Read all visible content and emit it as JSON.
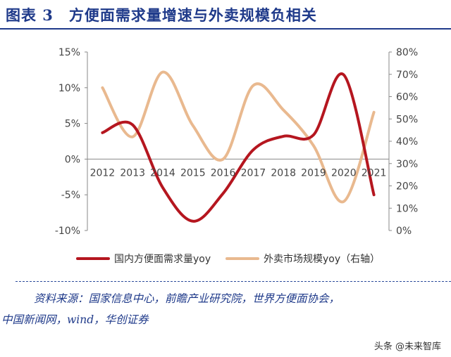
{
  "header": {
    "title": "图表 3　方便面需求量增速与外卖规模负相关"
  },
  "chart_data": {
    "type": "line",
    "categories": [
      "2012",
      "2013",
      "2014",
      "2015",
      "2016",
      "2017",
      "2018",
      "2019",
      "2020",
      "2021"
    ],
    "series": [
      {
        "name": "国内方便面需求量yoy",
        "axis": "left",
        "color": "#b5161f",
        "values": [
          3.7,
          4.8,
          -4.0,
          -8.7,
          -4.8,
          1.3,
          3.2,
          3.4,
          11.8,
          -5.0
        ]
      },
      {
        "name": "外卖市场规模yoy（右轴）",
        "axis": "right",
        "color": "#e9b98f",
        "values": [
          64,
          42,
          71,
          47,
          32,
          65,
          54,
          38,
          13,
          53
        ]
      }
    ],
    "y_left": {
      "ylim": [
        -10,
        15
      ],
      "ticks": [
        "15%",
        "10%",
        "5%",
        "0%",
        "-5%",
        "-10%"
      ],
      "tick_values": [
        15,
        10,
        5,
        0,
        -5,
        -10
      ]
    },
    "y_right": {
      "ylim": [
        0,
        80
      ],
      "ticks": [
        "80%",
        "70%",
        "60%",
        "50%",
        "40%",
        "30%",
        "20%",
        "10%",
        "0%"
      ],
      "tick_values": [
        80,
        70,
        60,
        50,
        40,
        30,
        20,
        10,
        0
      ]
    },
    "legend": [
      "国内方便面需求量yoy",
      "外卖市场规模yoy（右轴）"
    ],
    "legend_position": "bottom"
  },
  "source": {
    "line1": "资料来源：国家信息中心，前瞻产业研究院，世界方便面协会，",
    "line2": "中国新闻网，wind，华创证券"
  },
  "watermark": "头条 @未来智库"
}
